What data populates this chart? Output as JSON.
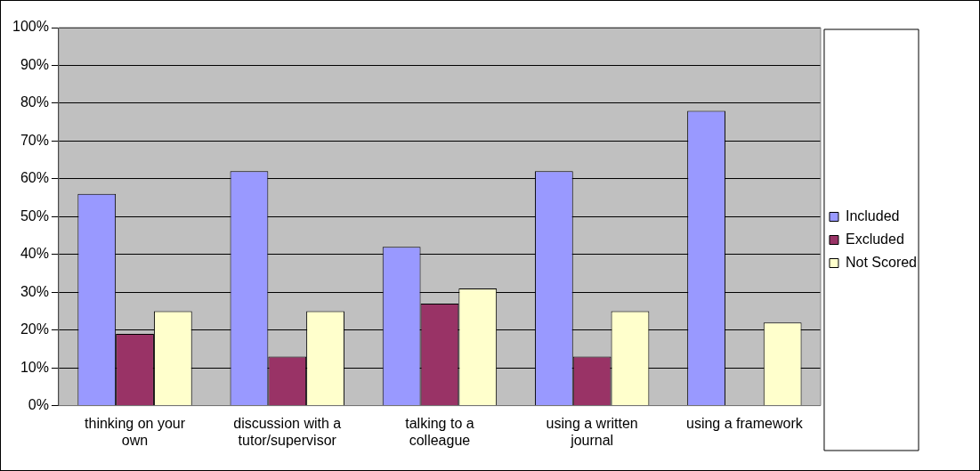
{
  "chart_data": {
    "type": "bar",
    "categories": [
      "thinking on your own",
      "discussion with a tutor/supervisor",
      "talking to a colleague",
      "using a written journal",
      "using a framework"
    ],
    "series": [
      {
        "name": "Included",
        "color": "#9999ff",
        "values": [
          56,
          62,
          42,
          62,
          78
        ]
      },
      {
        "name": "Excluded",
        "color": "#993366",
        "values": [
          19,
          13,
          27,
          13,
          0
        ]
      },
      {
        "name": "Not Scored",
        "color": "#ffffcc",
        "values": [
          25,
          25,
          31,
          25,
          22
        ]
      }
    ],
    "ylim": [
      0,
      100
    ],
    "yticks": [
      {
        "value": 0,
        "label": "0%"
      },
      {
        "value": 10,
        "label": "10%"
      },
      {
        "value": 20,
        "label": "20%"
      },
      {
        "value": 30,
        "label": "30%"
      },
      {
        "value": 40,
        "label": "40%"
      },
      {
        "value": 50,
        "label": "50%"
      },
      {
        "value": 60,
        "label": "60%"
      },
      {
        "value": 70,
        "label": "70%"
      },
      {
        "value": 80,
        "label": "80%"
      },
      {
        "value": 90,
        "label": "90%"
      },
      {
        "value": 100,
        "label": "100%"
      }
    ],
    "grid": "y",
    "legend": "right"
  }
}
